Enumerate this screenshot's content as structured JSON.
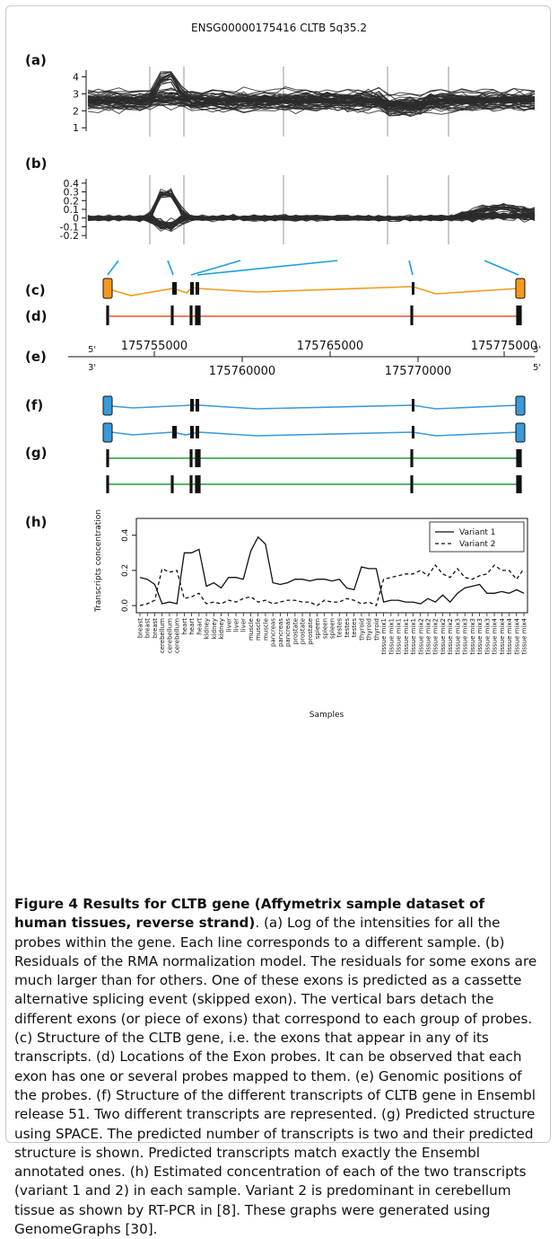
{
  "figure": {
    "title": "ENSG00000175416 CLTB 5q35.2",
    "panel_labels": [
      "(a)",
      "(b)",
      "(c)",
      "(d)",
      "(e)",
      "(f)",
      "(g)",
      "(h)"
    ],
    "colors": {
      "probe_lines": "#2b2b2b",
      "separators": "#bdbdbd",
      "gene_structure": "#f29a1c",
      "probe_track": "#e8572a",
      "mapping_lines": "#1a9fd8",
      "transcripts_ensembl": "#3b9ad9",
      "transcripts_predicted": "#1e9e3c"
    }
  },
  "chart_data": [
    {
      "panel": "(a)",
      "type": "line",
      "yticks": [
        1,
        2,
        3,
        4
      ],
      "ylim": [
        0.8,
        4.4
      ]
    },
    {
      "panel": "(b)",
      "type": "line",
      "yticks": [
        "-0.2",
        "-0.1",
        "0",
        "0.1",
        "0.2",
        "0.3",
        "0.4"
      ],
      "ylim": [
        -0.24,
        0.45
      ]
    },
    {
      "panel": "(e)",
      "type": "axis",
      "top_end_labels": [
        "5'",
        "3'"
      ],
      "bottom_end_labels": [
        "3'",
        "5'"
      ],
      "upper_ticks": [
        "175755000",
        "175765000",
        "175775000"
      ],
      "lower_ticks": [
        "175760000",
        "175770000"
      ]
    },
    {
      "panel": "(h)",
      "type": "line",
      "ylabel": "Transcripts concentration",
      "xlabel": "Samples",
      "ylim": [
        0,
        0.45
      ],
      "yticks": [
        "0.0",
        "0.2",
        "0.4"
      ],
      "legend_position": "top-right",
      "categories": [
        "breast",
        "breast",
        "breast",
        "cerebellum",
        "cerebellum",
        "cerebellum",
        "heart",
        "heart",
        "heart",
        "kidney",
        "kidney",
        "kidney",
        "liver",
        "liver",
        "liver",
        "muscle",
        "muscle",
        "muscle",
        "pancreas",
        "pancreas",
        "pancreas",
        "prostate",
        "prostate",
        "prostate",
        "spleen",
        "spleen",
        "spleen",
        "testes",
        "testes",
        "testes",
        "thyroid",
        "thyroid",
        "thyroid",
        "tissue mix1",
        "tissue mix1",
        "tissue mix1",
        "tissue mix1",
        "tissue mix1",
        "tissue mix2",
        "tissue mix2",
        "tissue mix2",
        "tissue mix2",
        "tissue mix2",
        "tissue mix3",
        "tissue mix3",
        "tissue mix3",
        "tissue mix3",
        "tissue mix3",
        "tissue mix4",
        "tissue mix4",
        "tissue mix4",
        "tissue mix4",
        "tissue mix4"
      ],
      "series": [
        {
          "name": "Variant 1",
          "style": "solid",
          "values": [
            0.16,
            0.15,
            0.12,
            0.01,
            0.02,
            0.01,
            0.3,
            0.3,
            0.32,
            0.11,
            0.13,
            0.1,
            0.16,
            0.16,
            0.15,
            0.31,
            0.39,
            0.35,
            0.13,
            0.12,
            0.13,
            0.15,
            0.15,
            0.14,
            0.15,
            0.15,
            0.14,
            0.15,
            0.1,
            0.09,
            0.22,
            0.21,
            0.21,
            0.02,
            0.03,
            0.03,
            0.02,
            0.02,
            0.01,
            0.04,
            0.02,
            0.06,
            0.02,
            0.07,
            0.1,
            0.11,
            0.12,
            0.07,
            0.07,
            0.08,
            0.07,
            0.09,
            0.07
          ]
        },
        {
          "name": "Variant 2",
          "style": "dashed",
          "values": [
            0.0,
            0.01,
            0.03,
            0.21,
            0.19,
            0.2,
            0.04,
            0.05,
            0.07,
            0.01,
            0.02,
            0.01,
            0.03,
            0.02,
            0.04,
            0.05,
            0.02,
            0.03,
            0.01,
            0.02,
            0.03,
            0.03,
            0.02,
            0.02,
            0.0,
            0.03,
            0.02,
            0.02,
            0.04,
            0.03,
            0.01,
            0.02,
            0.0,
            0.15,
            0.16,
            0.17,
            0.18,
            0.18,
            0.2,
            0.17,
            0.23,
            0.18,
            0.16,
            0.21,
            0.16,
            0.15,
            0.17,
            0.18,
            0.23,
            0.2,
            0.2,
            0.15,
            0.21
          ]
        }
      ]
    }
  ],
  "caption": {
    "title": "Figure 4 Results for CLTB gene (Affymetrix sample dataset of human tissues, reverse strand)",
    "body": ". (a) Log of the intensities for all the probes within the gene. Each line corresponds to a different sample. (b) Residuals of the RMA normalization model. The residuals for some exons are much larger than for others. One of these exons is predicted as a cassette alternative splicing event (skipped exon). The vertical bars detach the different exons (or piece of exons) that correspond to each group of probes. (c) Structure of the CLTB gene, i.e. the exons that appear in any of its transcripts. (d) Locations of the Exon probes. It can be observed that each exon has one or several probes mapped to them. (e) Genomic positions of the probes. (f) Structure of the different transcripts of CLTB gene in Ensembl release 51. Two different transcripts are represented. (g) Predicted structure using SPACE. The predicted number of transcripts is two and their predicted structure is shown. Predicted transcripts match exactly the Ensembl annotated ones. (h) Estimated concentration of each of the two transcripts (variant 1 and 2) in each sample. Variant 2 is predominant in cerebellum tissue as shown by RT-PCR in [8]. These graphs were generated using GenomeGraphs [30]."
  }
}
